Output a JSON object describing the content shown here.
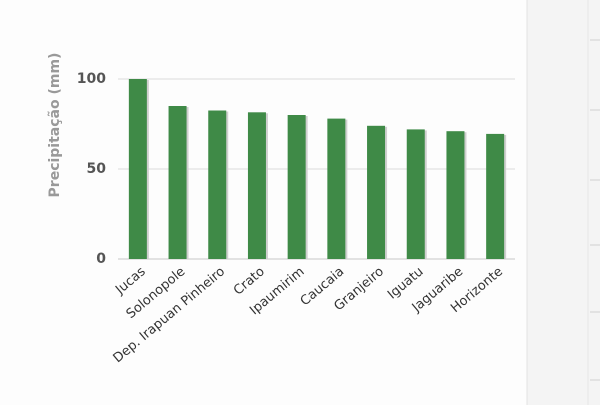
{
  "chart_data": {
    "type": "bar",
    "y_axis_label": "Precipitação (mm)",
    "categories": [
      "Jucas",
      "Solonopole",
      "Dep. Irapuan Pinheiro",
      "Crato",
      "Ipaumirim",
      "Caucaia",
      "Granjeiro",
      "Iguatu",
      "Jaguaribe",
      "Horizonte"
    ],
    "values": [
      100,
      85,
      82.5,
      81.5,
      80,
      78,
      74,
      72,
      71,
      69.5
    ],
    "color": "#3f8a47",
    "ylim": [
      0,
      100
    ],
    "yticks": [
      0,
      50,
      100
    ],
    "grid": true
  }
}
